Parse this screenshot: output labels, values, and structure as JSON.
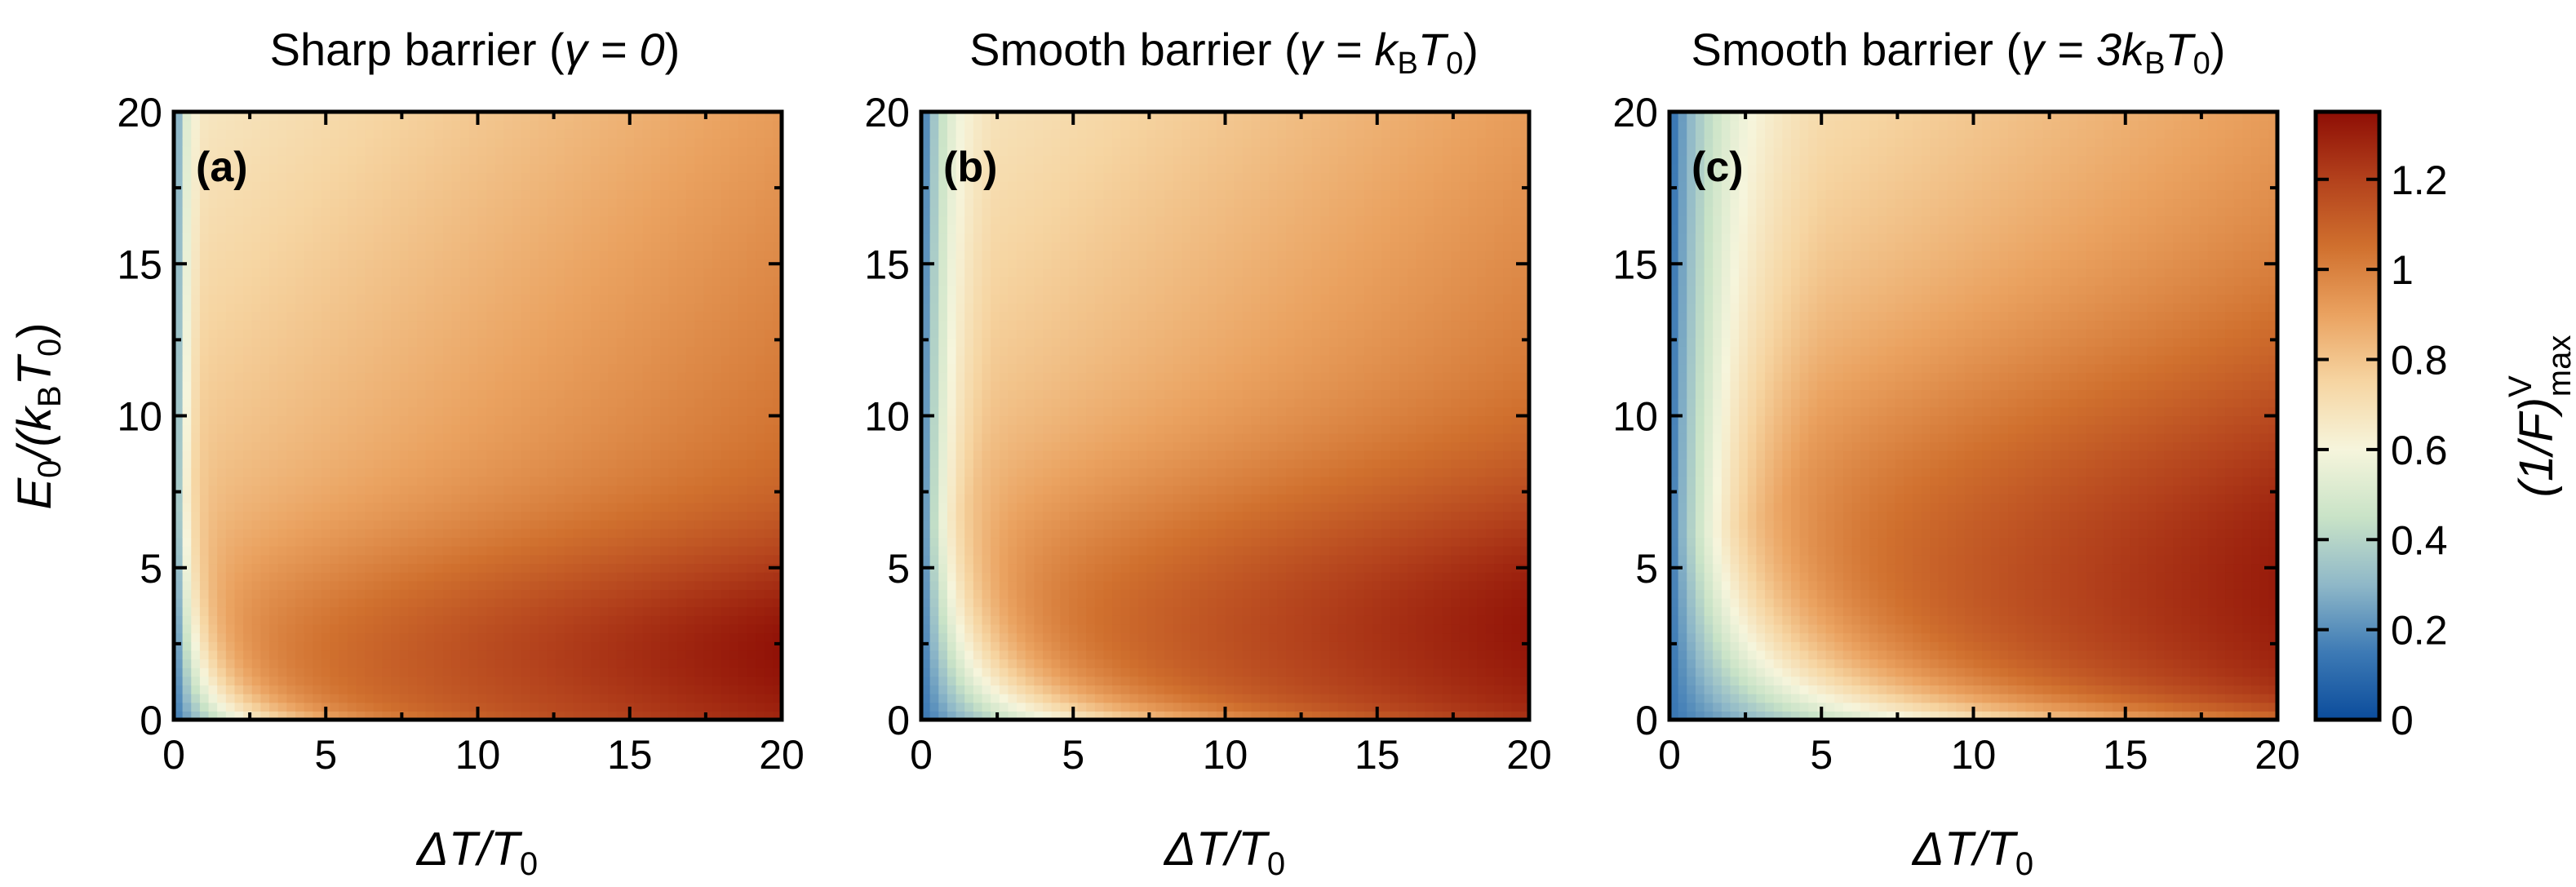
{
  "colorbar": {
    "label": "(1/F)",
    "label_sup": "V",
    "label_sub": "max",
    "ticks": [
      "0",
      "0.2",
      "0.4",
      "0.6",
      "0.8",
      "1",
      "1.2"
    ],
    "tick_values": [
      0,
      0.2,
      0.4,
      0.6,
      0.8,
      1.0,
      1.2
    ],
    "range": [
      0,
      1.35
    ],
    "colormap": [
      "#0b4c9c",
      "#3d7ab5",
      "#8fb8c8",
      "#c9e3c7",
      "#f6f5dc",
      "#f6d5a2",
      "#eaa260",
      "#d0702e",
      "#b3411c",
      "#8e0e05"
    ]
  },
  "axes_common": {
    "xlabel_main": "ΔT/T",
    "xlabel_sub": "0",
    "ylabel_main": "E",
    "ylabel_sub0": "0",
    "ylabel_mid": "/(k",
    "ylabel_sub1": "B",
    "ylabel_main2": "T",
    "ylabel_sub2": "0",
    "ylabel_end": ")",
    "xticks": [
      "0",
      "5",
      "10",
      "15",
      "20"
    ],
    "yticks": [
      "0",
      "5",
      "10",
      "15",
      "20"
    ],
    "xtick_values": [
      0,
      5,
      10,
      15,
      20
    ],
    "ytick_values": [
      0,
      5,
      10,
      15,
      20
    ],
    "xlim": [
      0,
      20
    ],
    "ylim": [
      0,
      20
    ]
  },
  "chart_data": [
    {
      "type": "heatmap",
      "panel_label": "(a)",
      "title_text": "Sharp barrier (",
      "title_math": "γ = 0",
      "title_close": ")",
      "gamma": 0,
      "x": "ΔT/T0",
      "y": "E0/(kBT0)",
      "xlim": [
        0,
        20
      ],
      "ylim": [
        0,
        20
      ],
      "value_range": [
        0,
        1.35
      ],
      "features": {
        "min_near_origin": 0.5,
        "max_near": [
          18,
          2.5
        ],
        "max_value": 1.35
      }
    },
    {
      "type": "heatmap",
      "panel_label": "(b)",
      "title_text": "Smooth barrier (",
      "title_math_pre": "γ = k",
      "title_math_sub": "B",
      "title_math_mid": "T",
      "title_math_sub2": "0",
      "title_close": ")",
      "gamma": 1,
      "x": "ΔT/T0",
      "y": "E0/(kBT0)",
      "xlim": [
        0,
        20
      ],
      "ylim": [
        0,
        20
      ],
      "value_range": [
        0,
        1.35
      ],
      "features": {
        "min_near_origin": 0.35,
        "max_near": [
          18,
          3
        ],
        "max_value": 1.3
      }
    },
    {
      "type": "heatmap",
      "panel_label": "(c)",
      "title_text": "Smooth barrier (",
      "title_math_pre": "γ = 3k",
      "title_math_sub": "B",
      "title_math_mid": "T",
      "title_math_sub2": "0",
      "title_close": ")",
      "gamma": 3,
      "x": "ΔT/T0",
      "y": "E0/(kBT0)",
      "xlim": [
        0,
        20
      ],
      "ylim": [
        0,
        20
      ],
      "value_range": [
        0,
        1.35
      ],
      "features": {
        "min_near_origin": 0.05,
        "max_near": [
          19,
          5
        ],
        "max_value": 1.15
      }
    }
  ]
}
